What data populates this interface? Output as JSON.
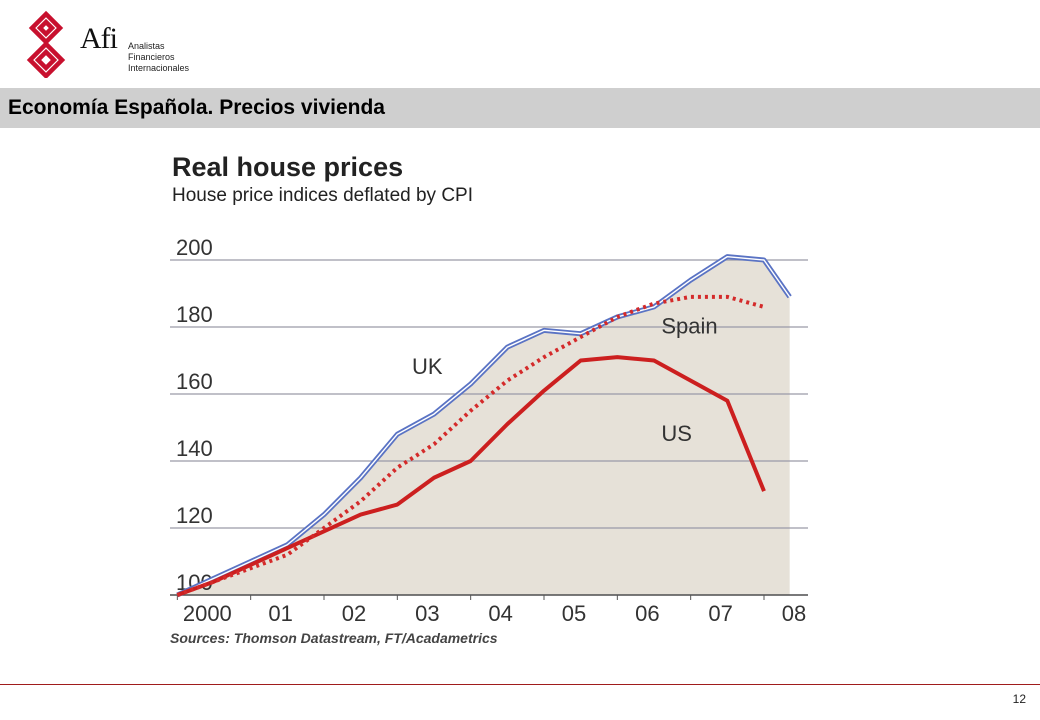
{
  "header": {
    "logo_mark": "Afi",
    "logo_lines": [
      "Analistas",
      "Financieros",
      "Internacionales"
    ],
    "title": "Economía Española. Precios vivienda"
  },
  "chart_data": {
    "type": "line",
    "title": "Real house prices",
    "subtitle": "House price indices deflated by CPI",
    "source": "Sources: Thomson Datastream, FT/Acadametrics",
    "x_tick_labels": [
      "2000",
      "01",
      "02",
      "03",
      "04",
      "05",
      "06",
      "07",
      "08"
    ],
    "x_ticks": [
      2000.0,
      2001.0,
      2002.0,
      2003.0,
      2004.0,
      2005.0,
      2006.0,
      2007.0,
      2008.0
    ],
    "xlim": [
      1999.9,
      2008.6
    ],
    "ylim": [
      100,
      200
    ],
    "y_ticks": [
      100,
      120,
      140,
      160,
      180,
      200
    ],
    "grid": true,
    "legend": "direct labels on lines",
    "background_color": "#e6e1d8",
    "series": [
      {
        "name": "UK",
        "color": "#5a73c4",
        "style": "double",
        "x": [
          2000.0,
          2000.5,
          2001.0,
          2001.5,
          2002.0,
          2002.5,
          2003.0,
          2003.5,
          2004.0,
          2004.5,
          2005.0,
          2005.5,
          2006.0,
          2006.5,
          2007.0,
          2007.5,
          2008.0,
          2008.35
        ],
        "y": [
          100,
          105,
          110,
          115,
          124,
          135,
          148,
          154,
          163,
          174,
          179,
          178,
          183,
          186,
          194,
          201,
          200,
          189
        ]
      },
      {
        "name": "Spain",
        "color": "#d42a2a",
        "style": "dotted",
        "x": [
          2000.0,
          2000.5,
          2001.0,
          2001.5,
          2002.0,
          2002.5,
          2003.0,
          2003.5,
          2004.0,
          2004.5,
          2005.0,
          2005.5,
          2006.0,
          2006.5,
          2007.0,
          2007.5,
          2008.0
        ],
        "y": [
          100,
          104,
          108,
          112,
          120,
          128,
          138,
          145,
          155,
          164,
          171,
          177,
          183,
          187,
          189,
          189,
          186
        ]
      },
      {
        "name": "US",
        "color": "#cc1f1f",
        "style": "solid",
        "x": [
          2000.0,
          2000.5,
          2001.0,
          2001.5,
          2002.0,
          2002.5,
          2003.0,
          2003.5,
          2004.0,
          2004.5,
          2005.0,
          2005.5,
          2006.0,
          2006.5,
          2007.0,
          2007.5,
          2008.0
        ],
        "y": [
          100,
          104,
          109,
          114,
          119,
          124,
          127,
          135,
          140,
          151,
          161,
          170,
          171,
          170,
          164,
          158,
          131
        ]
      }
    ]
  },
  "footer": {
    "page_number": "12"
  }
}
